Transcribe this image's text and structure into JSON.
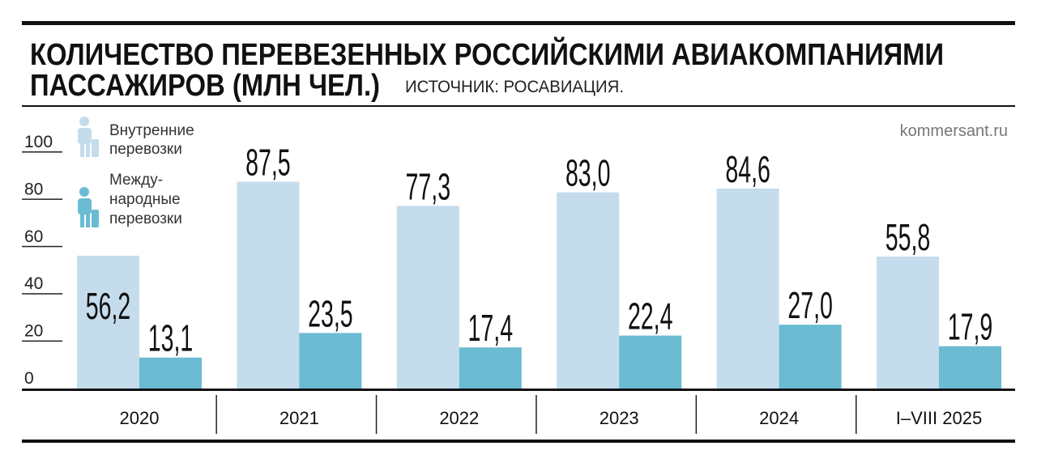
{
  "title_line1": "КОЛИЧЕСТВО ПЕРЕВЕЗЕННЫХ РОССИЙСКИМИ АВИАКОМПАНИЯМИ",
  "title_line2": "ПАССАЖИРОВ (МЛН ЧЕЛ.)",
  "source": "ИСТОЧНИК: РОСАВИАЦИЯ.",
  "site": "kommersant.ru",
  "legend": {
    "domestic": [
      "Внутренние",
      "перевозки"
    ],
    "international": [
      "Между-",
      "народные",
      "перевозки"
    ]
  },
  "colors": {
    "domestic": "#c5dcec",
    "international": "#6bbbd3"
  },
  "chart_data": {
    "type": "bar",
    "title": "КОЛИЧЕСТВО ПЕРЕВЕЗЕННЫХ РОССИЙСКИМИ АВИАКОМПАНИЯМИ ПАССАЖИРОВ (МЛН ЧЕЛ.)",
    "categories": [
      "2020",
      "2021",
      "2022",
      "2023",
      "2024",
      "I–VIII 2025"
    ],
    "series": [
      {
        "name": "Внутренние перевозки",
        "values": [
          56.2,
          87.5,
          77.3,
          83.0,
          84.6,
          55.8
        ],
        "labels": [
          "56,2",
          "87,5",
          "77,3",
          "83,0",
          "84,6",
          "55,8"
        ]
      },
      {
        "name": "Международные перевозки",
        "values": [
          13.1,
          23.5,
          17.4,
          22.4,
          27.0,
          17.9
        ],
        "labels": [
          "13,1",
          "23,5",
          "17,4",
          "22,4",
          "27,0",
          "17,9"
        ]
      }
    ],
    "ylim": [
      0,
      100
    ],
    "yticks": [
      "0",
      "20",
      "40",
      "60",
      "80",
      "100"
    ],
    "legend_position": "top-left"
  }
}
